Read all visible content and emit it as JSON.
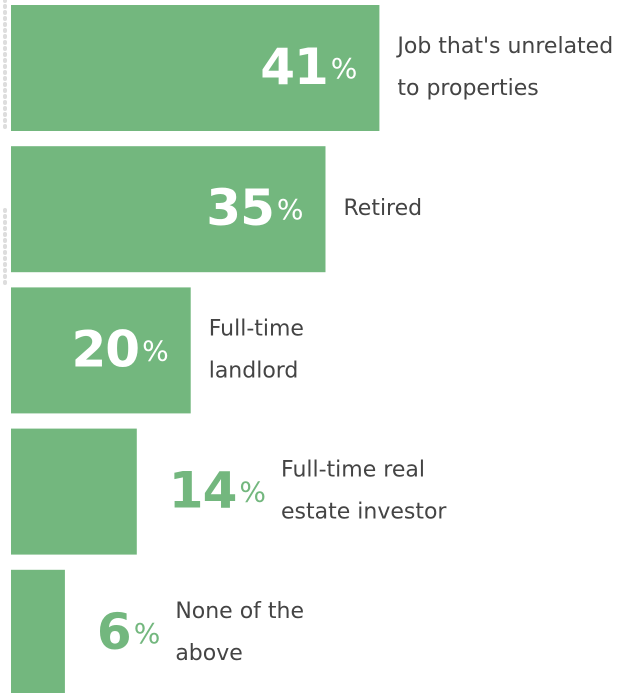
{
  "chart_data": {
    "type": "bar",
    "orientation": "horizontal",
    "categories": [
      [
        "Job that's unrelated",
        "to properties"
      ],
      [
        "Retired"
      ],
      [
        "Full-time",
        "landlord"
      ],
      [
        "Full-time real",
        "estate investor"
      ],
      [
        "None of the",
        "above"
      ]
    ],
    "values": [
      41,
      35,
      20,
      14,
      6
    ],
    "value_labels": [
      "41%",
      "35%",
      "20%",
      "14%",
      "6%"
    ],
    "color": "#73b77e",
    "xlim": [
      0,
      69
    ]
  }
}
